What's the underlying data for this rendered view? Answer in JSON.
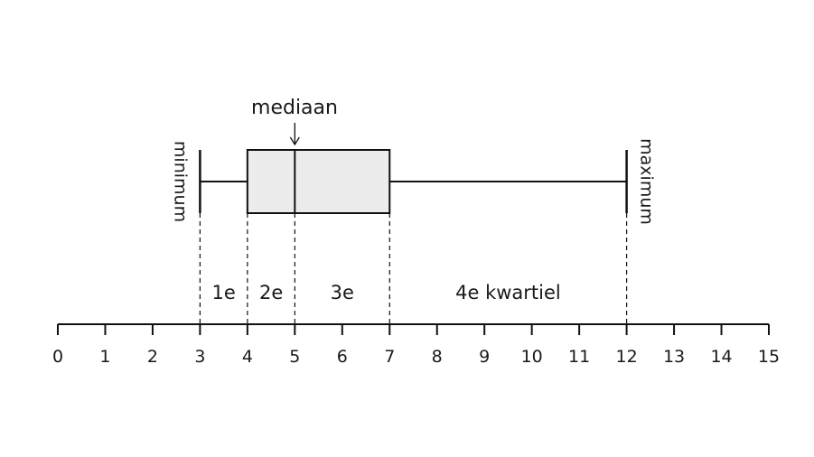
{
  "diagram": {
    "median_label": "mediaan",
    "minimum_label": "minimum",
    "maximum_label": "maximum",
    "quartile_labels": [
      "1e",
      "2e",
      "3e",
      "4e kwartiel"
    ],
    "axis_ticks": [
      "0",
      "1",
      "2",
      "3",
      "4",
      "5",
      "6",
      "7",
      "8",
      "9",
      "10",
      "11",
      "12",
      "13",
      "14",
      "15"
    ]
  },
  "chart_data": {
    "type": "boxplot",
    "min": 3,
    "q1": 4,
    "median": 5,
    "q3": 7,
    "max": 12,
    "xlim": [
      0,
      15
    ],
    "box_fill": "#ececec",
    "stroke": "#111111"
  }
}
